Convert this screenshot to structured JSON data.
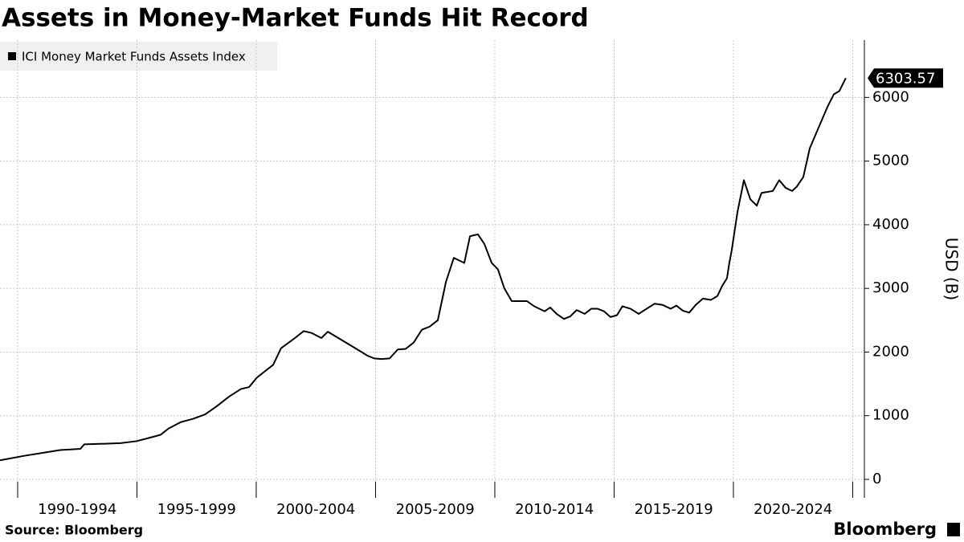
{
  "chart_data": {
    "type": "line",
    "title": "Assets in Money-Market Funds Hit Record",
    "ylabel": "USD (B)",
    "source": "Source: Bloomberg",
    "brand": "Bloomberg",
    "series": [
      {
        "name": "ICI Money Market Funds Assets Index",
        "color": "#000000",
        "x": [
          1989.26,
          1990.27,
          1991.28,
          1991.78,
          1992.63,
          1992.79,
          1993.64,
          1994.31,
          1994.98,
          1995.49,
          1995.99,
          1996.33,
          1996.84,
          1997.34,
          1997.85,
          1998.35,
          1998.86,
          1999.36,
          1999.7,
          2000.03,
          2000.37,
          2000.71,
          2001.04,
          2001.55,
          2001.99,
          2002.32,
          2002.73,
          2003.0,
          2003.4,
          2003.8,
          2004.24,
          2004.68,
          2004.95,
          2005.25,
          2005.59,
          2005.93,
          2006.26,
          2006.6,
          2006.94,
          2007.27,
          2007.61,
          2007.95,
          2008.28,
          2008.72,
          2008.96,
          2009.29,
          2009.56,
          2009.87,
          2010.13,
          2010.4,
          2010.71,
          2011.35,
          2011.65,
          2012.09,
          2012.32,
          2012.59,
          2012.9,
          2013.16,
          2013.43,
          2013.77,
          2014.04,
          2014.31,
          2014.58,
          2014.85,
          2015.12,
          2015.35,
          2015.69,
          2016.03,
          2016.36,
          2016.7,
          2017.04,
          2017.37,
          2017.61,
          2017.88,
          2018.15,
          2018.42,
          2018.72,
          2019.06,
          2019.33,
          2019.53,
          2019.73,
          2019.83,
          2019.93,
          2020.17,
          2020.44,
          2020.71,
          2020.98,
          2021.18,
          2021.65,
          2021.92,
          2022.19,
          2022.46,
          2022.66,
          2022.93,
          2023.2,
          2023.54,
          2023.94,
          2024.21,
          2024.44,
          2024.71
        ],
        "values": [
          300,
          370,
          430,
          460,
          480,
          550,
          560,
          570,
          600,
          650,
          700,
          800,
          900,
          950,
          1020,
          1150,
          1300,
          1420,
          1450,
          1600,
          1700,
          1800,
          2060,
          2200,
          2330,
          2300,
          2220,
          2320,
          2230,
          2140,
          2040,
          1940,
          1900,
          1890,
          1900,
          2040,
          2050,
          2150,
          2350,
          2400,
          2500,
          3100,
          3480,
          3400,
          3820,
          3850,
          3700,
          3400,
          3300,
          3000,
          2800,
          2800,
          2720,
          2640,
          2700,
          2600,
          2520,
          2560,
          2660,
          2600,
          2680,
          2680,
          2640,
          2550,
          2580,
          2720,
          2680,
          2600,
          2680,
          2760,
          2740,
          2680,
          2730,
          2650,
          2620,
          2740,
          2840,
          2820,
          2880,
          3040,
          3160,
          3400,
          3600,
          4200,
          4700,
          4400,
          4300,
          4500,
          4530,
          4700,
          4580,
          4530,
          4600,
          4750,
          5200,
          5500,
          5850,
          6050,
          6100,
          6303.57
        ]
      }
    ],
    "last_value_label": "6303.57",
    "xlim": [
      1989.26,
      2025.49
    ],
    "xticks": [
      {
        "value": 1992.5,
        "label": "1990-1994"
      },
      {
        "value": 1997.5,
        "label": "1995-1999"
      },
      {
        "value": 2002.5,
        "label": "2000-2004"
      },
      {
        "value": 2007.5,
        "label": "2005-2009"
      },
      {
        "value": 2012.5,
        "label": "2010-2014"
      },
      {
        "value": 2017.5,
        "label": "2015-2019"
      },
      {
        "value": 2022.5,
        "label": "2020-2024"
      }
    ],
    "xgrid": [
      1990,
      1995,
      2000,
      2005,
      2010,
      2015,
      2020,
      2025
    ],
    "ylim": [
      -290,
      6900
    ],
    "yticks": [
      0,
      1000,
      2000,
      3000,
      4000,
      5000,
      6000
    ],
    "grid": true
  }
}
